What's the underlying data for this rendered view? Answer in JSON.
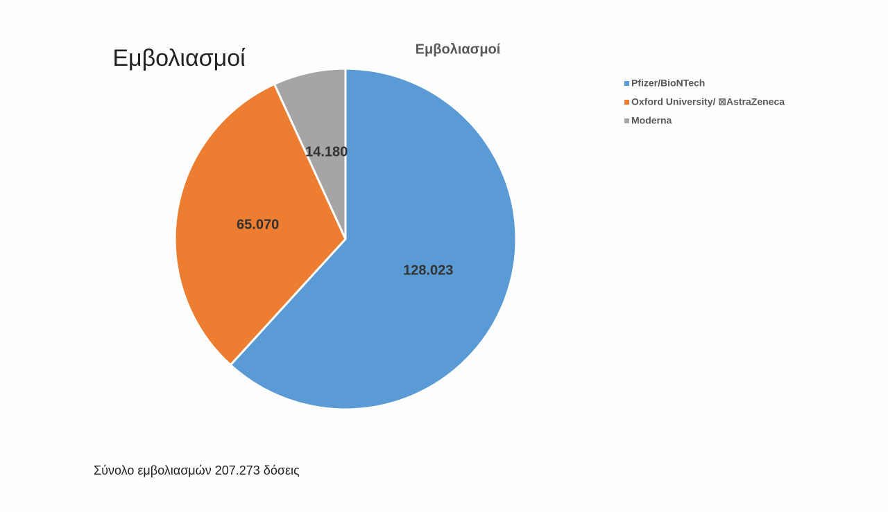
{
  "heading": "Εμβολιασμοί",
  "chart_data": {
    "type": "pie",
    "title": "Εμβολιασμοί",
    "categories": [
      "Pfizer/BioNTech",
      "Oxford University/ ⊠AstraZeneca",
      "Moderna"
    ],
    "values": [
      128023,
      65070,
      14180
    ],
    "value_labels": [
      "128.023",
      "65.070",
      "14.180"
    ],
    "colors": [
      "#5b9bd5",
      "#ed7d31",
      "#a5a5a5"
    ],
    "legend": "right"
  },
  "footer": "Σύνολο εμβολιασμών 207.273 δόσεις"
}
